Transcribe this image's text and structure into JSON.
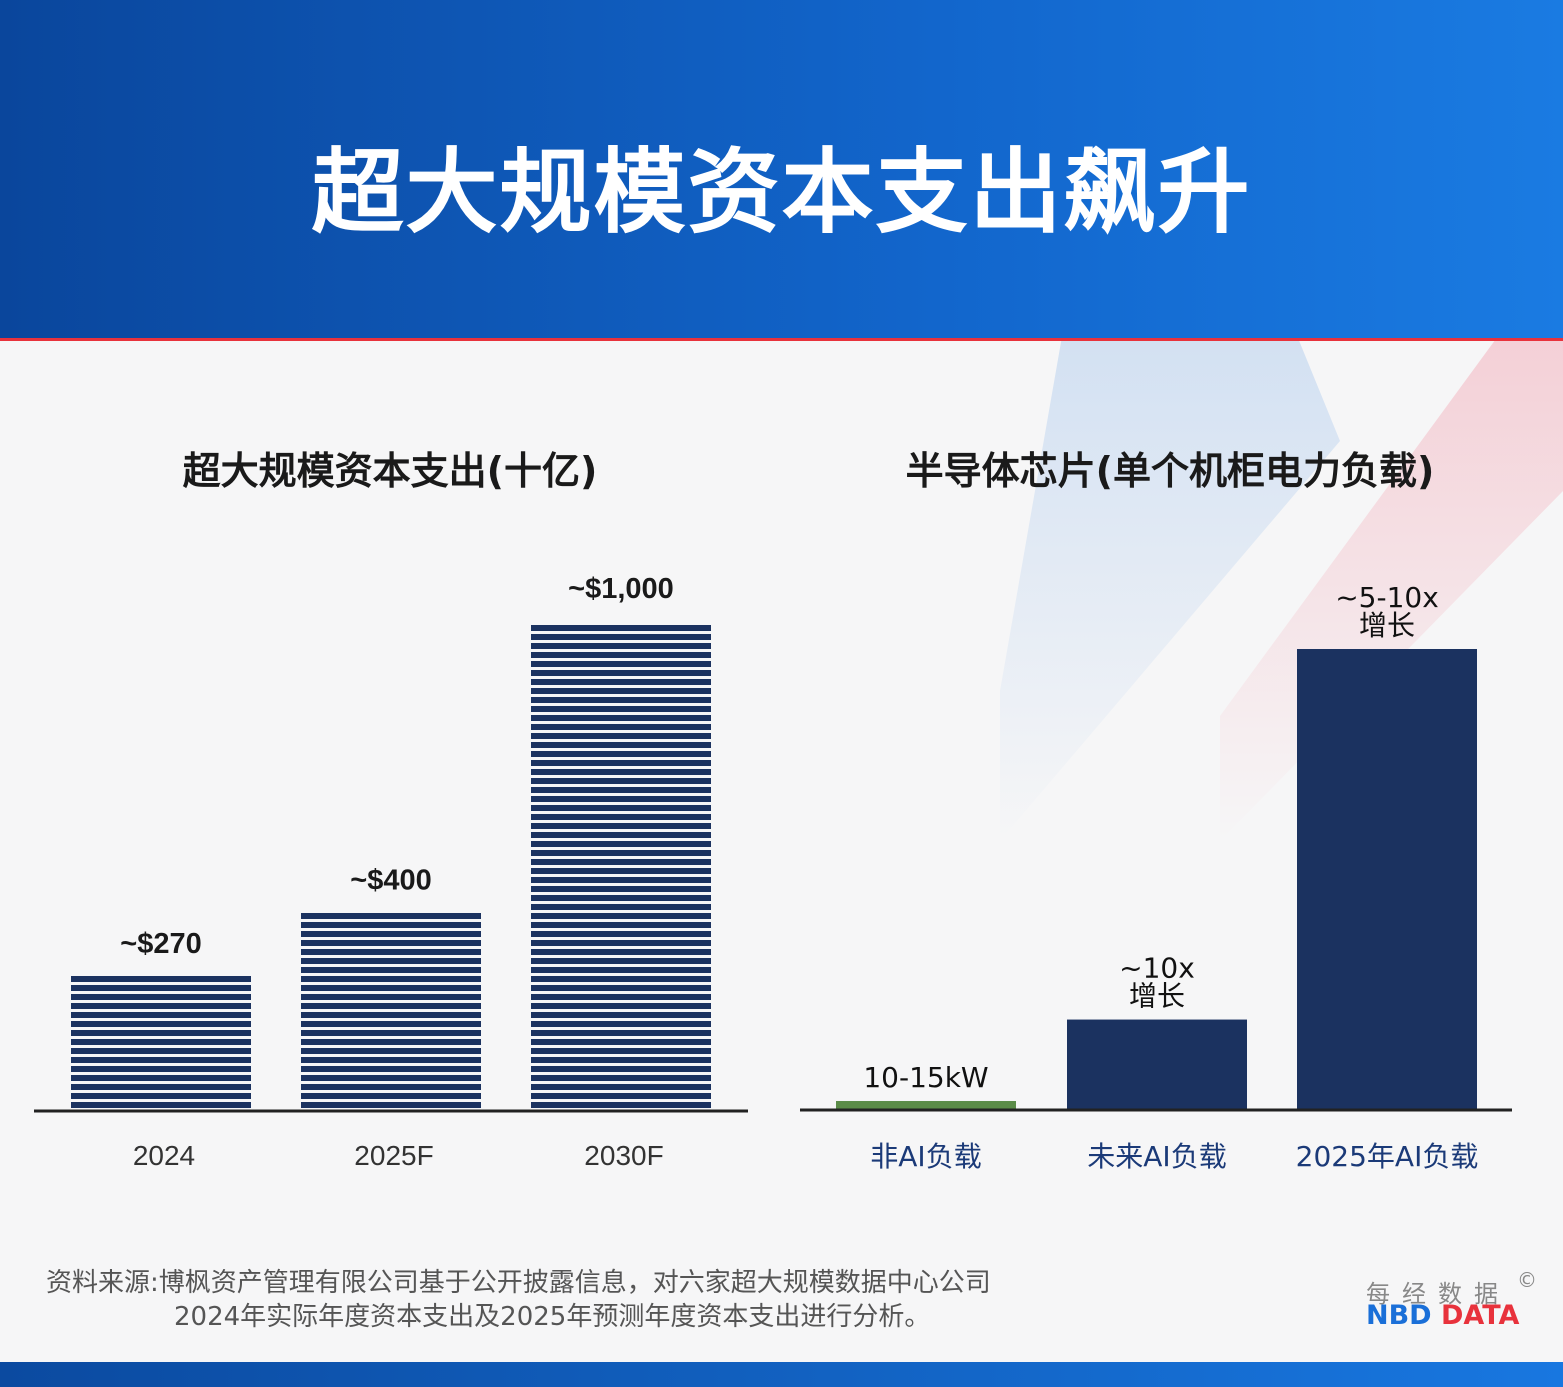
{
  "header": {
    "title": "超大规模资本支出飙升"
  },
  "colors": {
    "bar": "#1b3260",
    "green": "#5b8c48",
    "header_start": "#0a469c",
    "header_end": "#1a7be2",
    "accent_red": "#e8323c"
  },
  "chart_data": [
    {
      "type": "bar",
      "title": "超大规模资本支出(十亿)",
      "categories": [
        "2024",
        "2025F",
        "2030F"
      ],
      "values": [
        270,
        400,
        1000
      ],
      "data_labels": [
        "~$270",
        "~$400",
        "~$1,000"
      ],
      "style": "horizontal-striped",
      "ylim": [
        0,
        1000
      ],
      "grid": false
    },
    {
      "type": "bar",
      "title": "半导体芯片(单个机柜电力负载)",
      "categories": [
        "非AI负载",
        "未来AI负载",
        "2025年AI负载"
      ],
      "values": [
        12.5,
        140,
        720
      ],
      "data_labels": [
        [
          "10-15kW"
        ],
        [
          "~10x",
          "增长"
        ],
        [
          "~5-10x",
          "增长"
        ]
      ],
      "colors": [
        "#5b8c48",
        "#1b3260",
        "#1b3260"
      ],
      "grid": false
    }
  ],
  "footer": {
    "source_line1": "资料来源:博枫资产管理有限公司基于公开披露信息，对六家超大规模数据中心公司",
    "source_line2": "2024年实际年度资本支出及2025年预测年度资本支出进行分析。",
    "logo_cn": "每经数据",
    "logo_symbol": "©",
    "logo_en_1": "NBD",
    "logo_en_2": "DATA"
  }
}
